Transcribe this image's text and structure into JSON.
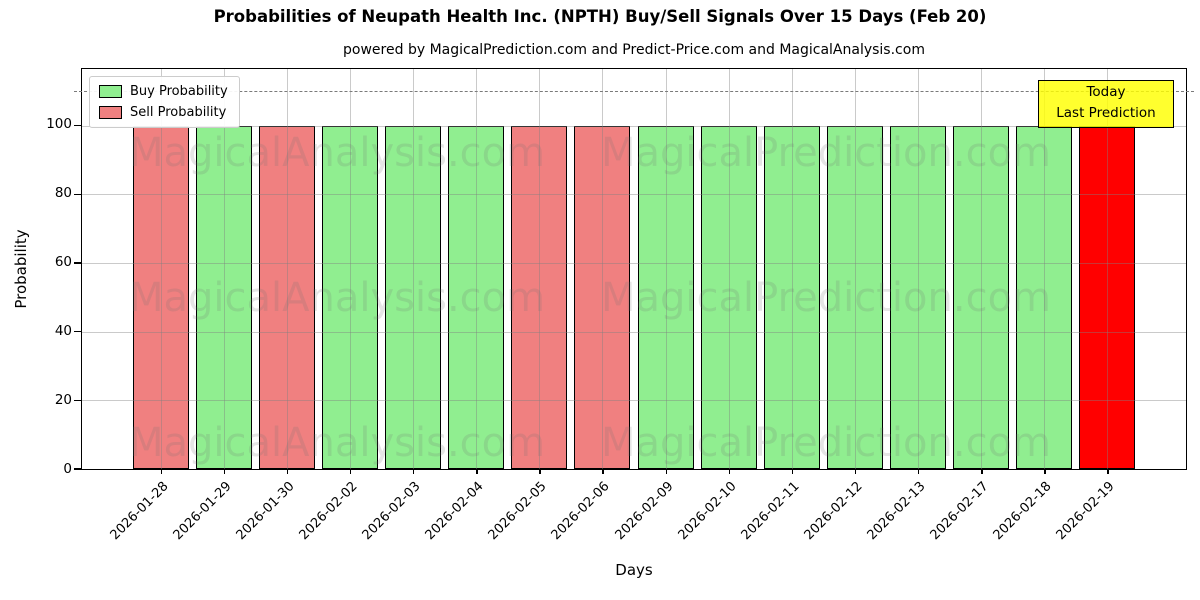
{
  "title": "Probabilities of Neupath Health Inc. (NPTH) Buy/Sell Signals Over 15 Days (Feb 20)",
  "subtitle": "powered by MagicalPrediction.com and Predict-Price.com and MagicalAnalysis.com",
  "legend": {
    "items": [
      {
        "label": "Buy Probability",
        "color": "#90EE90"
      },
      {
        "label": "Sell Probability",
        "color": "#F08080"
      }
    ]
  },
  "annotation_box": {
    "line1": "Today",
    "line2": "Last Prediction",
    "bg_color": "#FFFF00"
  },
  "watermark": {
    "left_text": "MagicalAnalysis.com",
    "right_text": "MagicalPrediction.com"
  },
  "chart_data": {
    "type": "bar",
    "title": "Probabilities of Neupath Health Inc. (NPTH) Buy/Sell Signals Over 15 Days (Feb 20)",
    "xlabel": "Days",
    "ylabel": "Probability",
    "yticks": [
      0,
      20,
      40,
      60,
      80,
      100
    ],
    "ylim": [
      0,
      116.5
    ],
    "dashed_guide_y": 110,
    "grid": true,
    "legend_position": "upper left",
    "signal_colors": {
      "buy": "#90EE90",
      "sell": "#F08080",
      "today": "#FF0000"
    },
    "bars": [
      {
        "date": "2026-01-28",
        "value": 100,
        "signal": "sell"
      },
      {
        "date": "2026-01-29",
        "value": 100,
        "signal": "buy"
      },
      {
        "date": "2026-01-30",
        "value": 100,
        "signal": "sell"
      },
      {
        "date": "2026-02-02",
        "value": 100,
        "signal": "buy"
      },
      {
        "date": "2026-02-03",
        "value": 100,
        "signal": "buy"
      },
      {
        "date": "2026-02-04",
        "value": 100,
        "signal": "buy"
      },
      {
        "date": "2026-02-05",
        "value": 100,
        "signal": "sell"
      },
      {
        "date": "2026-02-06",
        "value": 100,
        "signal": "sell"
      },
      {
        "date": "2026-02-09",
        "value": 100,
        "signal": "buy"
      },
      {
        "date": "2026-02-10",
        "value": 100,
        "signal": "buy"
      },
      {
        "date": "2026-02-11",
        "value": 100,
        "signal": "buy"
      },
      {
        "date": "2026-02-12",
        "value": 100,
        "signal": "buy"
      },
      {
        "date": "2026-02-13",
        "value": 100,
        "signal": "buy"
      },
      {
        "date": "2026-02-17",
        "value": 100,
        "signal": "buy"
      },
      {
        "date": "2026-02-18",
        "value": 100,
        "signal": "buy"
      },
      {
        "date": "2026-02-19",
        "value": 100,
        "signal": "today"
      }
    ]
  }
}
